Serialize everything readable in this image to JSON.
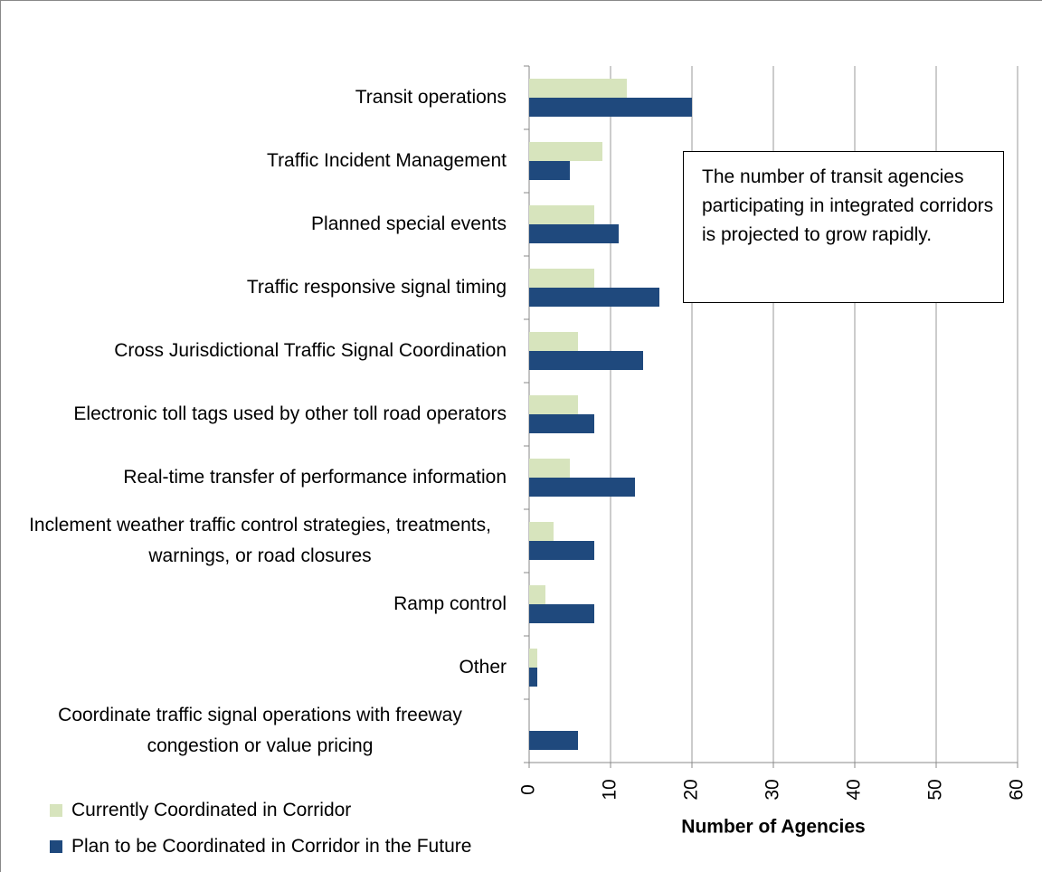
{
  "chart_data": {
    "type": "bar",
    "orientation": "horizontal",
    "xlabel": "Number of Agencies",
    "annotation": "The number of transit agencies participating in integrated corridors is projected to grow rapidly.",
    "categories": [
      "Transit operations",
      "Traffic Incident Management",
      "Planned special events",
      "Traffic responsive signal timing",
      "Cross Jurisdictional Traffic Signal Coordination",
      "Electronic toll tags used by other toll road operators",
      "Real-time transfer of performance information",
      "Inclement weather traffic control strategies, treatments, warnings, or road closures",
      "Ramp control",
      "Other",
      "Coordinate traffic signal operations with freeway congestion or value pricing"
    ],
    "series": [
      {
        "name": "Currently Coordinated  in Corridor",
        "color": "#d7e4bd",
        "values": [
          12,
          9,
          8,
          8,
          6,
          6,
          5,
          3,
          2,
          1,
          0
        ]
      },
      {
        "name": "Plan to be Coordinated in Corridor in the Future",
        "color": "#1f497d",
        "values": [
          20,
          5,
          11,
          16,
          14,
          8,
          13,
          8,
          8,
          1,
          6
        ]
      }
    ],
    "xlim": [
      0,
      60
    ],
    "xticks": [
      0,
      10,
      20,
      30,
      40,
      50,
      60
    ],
    "grid": true
  }
}
